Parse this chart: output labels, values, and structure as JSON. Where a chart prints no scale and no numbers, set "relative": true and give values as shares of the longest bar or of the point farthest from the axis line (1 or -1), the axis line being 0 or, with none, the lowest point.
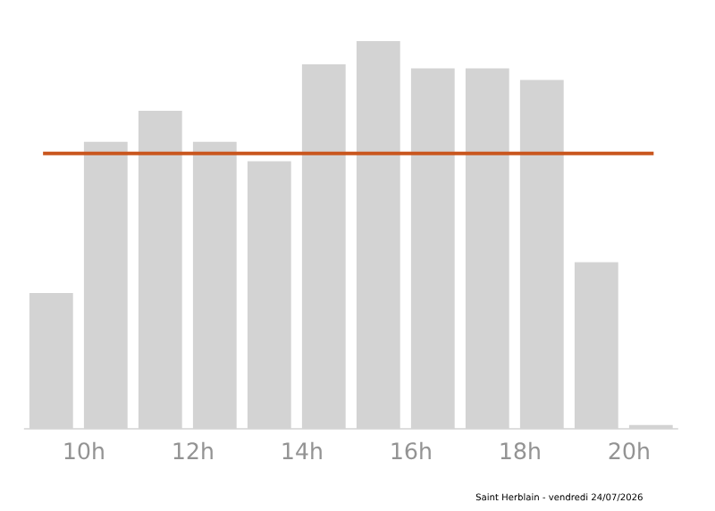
{
  "chart_data": {
    "type": "bar",
    "relative": true,
    "x": [
      9.4,
      10.4,
      11.4,
      12.4,
      13.4,
      14.4,
      15.4,
      16.4,
      17.4,
      18.4,
      19.4,
      20.4
    ],
    "xlim": [
      8.9,
      20.9
    ],
    "values": [
      0.35,
      0.74,
      0.82,
      0.74,
      0.69,
      0.94,
      1,
      0.93,
      0.93,
      0.9,
      0.43,
      0.01
    ],
    "color": "#d3d3d3",
    "xticks": [
      {
        "value": 10,
        "label": "10h"
      },
      {
        "value": 12,
        "label": "12h"
      },
      {
        "value": 14,
        "label": "14h"
      },
      {
        "value": 16,
        "label": "16h"
      },
      {
        "value": 18,
        "label": "18h"
      },
      {
        "value": 20,
        "label": "20h"
      }
    ],
    "ref_lines": [
      {
        "axis": "y",
        "value": 0.71,
        "color": "#c9561e"
      }
    ],
    "grid": false,
    "annotations": [
      "Saint Herblain - vendredi 24/07/2026"
    ]
  }
}
